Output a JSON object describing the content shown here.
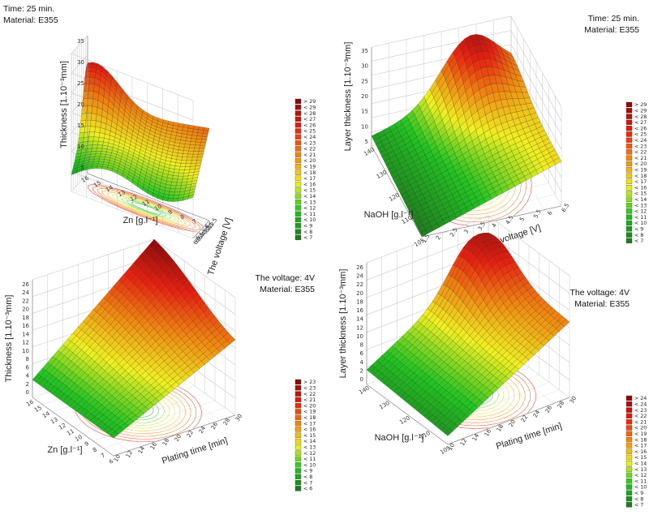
{
  "chart_data": [
    {
      "type": "surface3d",
      "notes": [
        "Time: 25 min.",
        "Material: E355"
      ],
      "zlabel": "Thickness [1.10⁻³mm]",
      "xlabel": "Zn [g.l⁻¹]",
      "ylabel": "The voltage [V]",
      "x_ticks": [
        "16",
        "15",
        "14",
        "13",
        "12",
        "11",
        "10",
        "9",
        "8",
        "7",
        "6"
      ],
      "y_ticks": [
        "1.5",
        "2",
        "2.5",
        "3",
        "3.5",
        "4",
        "4.5",
        "5",
        "5.5",
        "6",
        "6.5"
      ],
      "z_ticks": [
        "5",
        "10",
        "15",
        "20",
        "25",
        "30",
        "35"
      ],
      "xlim": [
        16,
        6
      ],
      "ylim": [
        1.5,
        6.5
      ],
      "zlim": [
        5,
        38
      ],
      "legend": [
        "> 29",
        "< 29",
        "< 28",
        "< 27",
        "< 26",
        "< 25",
        "< 24",
        "< 23",
        "< 22",
        "< 21",
        "< 20",
        "< 19",
        "< 18",
        "< 17",
        "< 16",
        "< 15",
        "< 14",
        "< 13",
        "< 12",
        "< 11",
        "< 10",
        "< 9",
        "< 8",
        "< 7"
      ]
    },
    {
      "type": "surface3d",
      "notes": [
        "Time: 25 min.",
        "Material: E355"
      ],
      "zlabel": "Layer thickness [1.10⁻³mm]",
      "xlabel": "NaOH [g.l⁻¹]",
      "ylabel": "The voltage [V]",
      "x_ticks": [
        "140",
        "130",
        "120",
        "110",
        "105"
      ],
      "y_ticks": [
        "1.5",
        "2",
        "2.5",
        "3",
        "3.5",
        "4",
        "4.5",
        "5",
        "5.5",
        "6",
        "6.5"
      ],
      "z_ticks": [
        "5",
        "10",
        "15",
        "20",
        "25",
        "30",
        "35"
      ],
      "xlim": [
        140,
        105
      ],
      "ylim": [
        1.5,
        6.5
      ],
      "zlim": [
        5,
        38
      ],
      "legend": [
        "> 29",
        "< 29",
        "< 28",
        "< 27",
        "< 26",
        "< 25",
        "< 24",
        "< 23",
        "< 22",
        "< 21",
        "< 20",
        "< 19",
        "< 18",
        "< 17",
        "< 16",
        "< 15",
        "< 14",
        "< 13",
        "< 12",
        "< 11",
        "< 10",
        "< 9",
        "< 8",
        "< 7"
      ]
    },
    {
      "type": "surface3d",
      "notes": [
        "The voltage: 4V",
        "Material: E355"
      ],
      "zlabel": "Thickness [1.10⁻³mm]",
      "xlabel": "Zn [g.l⁻¹]",
      "ylabel": "Plating time [min]",
      "x_ticks": [
        "16",
        "15",
        "14",
        "13",
        "12",
        "11",
        "10",
        "9",
        "8",
        "7",
        "6"
      ],
      "y_ticks": [
        "10",
        "12",
        "14",
        "16",
        "18",
        "20",
        "22",
        "24",
        "26",
        "28",
        "30"
      ],
      "z_ticks": [
        "0",
        "2",
        "4",
        "6",
        "8",
        "10",
        "12",
        "14",
        "16",
        "18",
        "20",
        "22",
        "24",
        "26"
      ],
      "xlim": [
        16,
        6
      ],
      "ylim": [
        10,
        30
      ],
      "zlim": [
        0,
        26
      ],
      "legend": [
        "> 23",
        "< 23",
        "< 22",
        "< 21",
        "< 20",
        "< 19",
        "< 18",
        "< 17",
        "< 16",
        "< 15",
        "< 14",
        "< 13",
        "< 12",
        "< 11",
        "< 10",
        "< 9",
        "< 8",
        "< 7",
        "< 6"
      ]
    },
    {
      "type": "surface3d",
      "notes": [
        "The voltage: 4V",
        "Material: E355"
      ],
      "zlabel": "Layer thickness [1.10⁻³mm]",
      "xlabel": "NaOH [g.l⁻¹]",
      "ylabel": "Plating time [min]",
      "x_ticks": [
        "140",
        "130",
        "120",
        "110",
        "105"
      ],
      "y_ticks": [
        "10",
        "12",
        "14",
        "16",
        "18",
        "20",
        "22",
        "24",
        "26",
        "28",
        "30"
      ],
      "z_ticks": [
        "0",
        "2",
        "4",
        "6",
        "8",
        "10",
        "12",
        "14",
        "16",
        "18",
        "20",
        "22",
        "24",
        "26"
      ],
      "xlim": [
        140,
        105
      ],
      "ylim": [
        10,
        30
      ],
      "zlim": [
        0,
        26
      ],
      "legend": [
        "> 24",
        "< 24",
        "< 23",
        "< 22",
        "< 21",
        "< 20",
        "< 19",
        "< 18",
        "< 17",
        "< 16",
        "< 15",
        "< 14",
        "< 13",
        "< 12",
        "< 11",
        "< 10",
        "< 9",
        "< 8",
        "< 7"
      ]
    }
  ],
  "colors": {
    "low": "#1e7a1e",
    "mid_green": "#22c422",
    "yellow": "#f0f020",
    "orange": "#f08a10",
    "red": "#e82010",
    "high": "#8a0a0a",
    "grid": "#c8c8c8"
  }
}
